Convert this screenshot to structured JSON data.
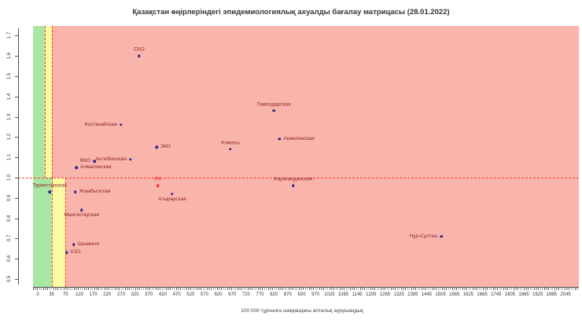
{
  "chart_data": {
    "type": "scatter",
    "title": "Қазақстан өңірлеріндегі эпидемиологиялық ахуалды бағалау матрицасы  (28.01.2022)",
    "xlabel": "100 000 тұрғынға шаққандағы апталық аурушаңдық",
    "ylabel": "",
    "x_ticks": [
      0,
      35,
      75,
      120,
      170,
      220,
      270,
      320,
      370,
      420,
      470,
      520,
      570,
      620,
      670,
      720,
      770,
      820,
      870,
      920,
      970,
      1025,
      1085,
      1145,
      1205,
      1265,
      1325,
      1385,
      1445,
      1505,
      1565,
      1625,
      1685,
      1745,
      1805,
      1865,
      1925,
      1985,
      2045
    ],
    "y_ticks": [
      0.5,
      0.6,
      0.7,
      0.8,
      0.9,
      1.0,
      1.1,
      1.2,
      1.3,
      1.4,
      1.5,
      1.6,
      1.7
    ],
    "ylim": [
      0.45,
      1.75
    ],
    "grid": false,
    "legend": "none",
    "reference_lines": {
      "horizontal_rt": 1.0,
      "color": "#ff3b30",
      "style": "dashed"
    },
    "zones": {
      "description": "traffic-light risk zones; incidence thresholds step at Rt = 1.0",
      "rt_above_1": {
        "green": [
          0,
          18
        ],
        "yellow": [
          18,
          35
        ]
      },
      "rt_below_1": {
        "green": [
          0,
          35
        ],
        "yellow": [
          35,
          75
        ]
      },
      "colors": {
        "green": "#a9e6a2",
        "yellow": "#fafaa2",
        "red": "#f9b5ac"
      }
    },
    "point_color": "#3a2a88",
    "label_color": "#8b2525",
    "points": [
      {
        "name": "СКО",
        "x": 335,
        "rt": 1.6,
        "label_pos": "above"
      },
      {
        "name": "Павлодарская",
        "x": 820,
        "rt": 1.33,
        "label_pos": "above"
      },
      {
        "name": "Костанайская",
        "x": 270,
        "rt": 1.26,
        "label_pos": "left"
      },
      {
        "name": "Акмолинская",
        "x": 840,
        "rt": 1.19,
        "label_pos": "right"
      },
      {
        "name": "ЗКО",
        "x": 398,
        "rt": 1.15,
        "label_pos": "right"
      },
      {
        "name": "Алматы",
        "x": 663,
        "rt": 1.14,
        "label_pos": "above"
      },
      {
        "name": "Актюбинская",
        "x": 304,
        "rt": 1.09,
        "label_pos": "left"
      },
      {
        "name": "ВКО",
        "x": 174,
        "rt": 1.08,
        "label_pos": "left"
      },
      {
        "name": "Алматинская",
        "x": 110,
        "rt": 1.05,
        "label_pos": "right"
      },
      {
        "name": "РК",
        "x": 403,
        "rt": 0.96,
        "label_pos": "above",
        "color": "#ff2222"
      },
      {
        "name": "Карагандинская",
        "x": 890,
        "rt": 0.96,
        "label_pos": "above"
      },
      {
        "name": "Туркестанская",
        "x": 30,
        "rt": 0.93,
        "label_pos": "above"
      },
      {
        "name": "Жамбылская",
        "x": 107,
        "rt": 0.93,
        "label_pos": "right"
      },
      {
        "name": "Атырауская",
        "x": 454,
        "rt": 0.92,
        "label_pos": "below"
      },
      {
        "name": "Мангистауская",
        "x": 128,
        "rt": 0.84,
        "label_pos": "below"
      },
      {
        "name": "Нұр-Сұлтан",
        "x": 1508,
        "rt": 0.71,
        "label_pos": "left"
      },
      {
        "name": "Шымкент",
        "x": 102,
        "rt": 0.67,
        "label_pos": "right"
      },
      {
        "name": "КЗО",
        "x": 79,
        "rt": 0.63,
        "label_pos": "right"
      }
    ]
  }
}
